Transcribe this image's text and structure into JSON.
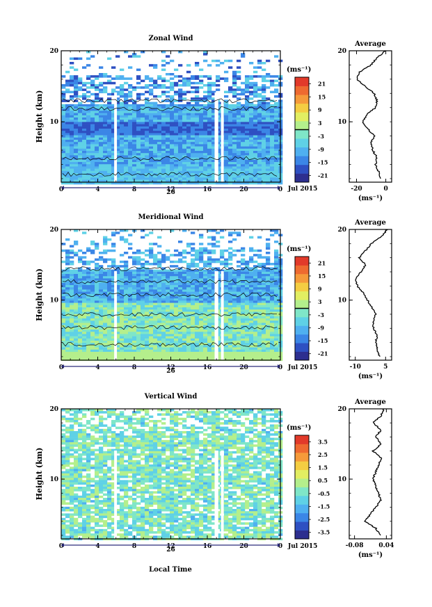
{
  "units_label": "(ms⁻¹)",
  "date_label": "Jul 2015",
  "day_label": "26",
  "shared_xlabel": "Local Time",
  "colors": {
    "scale": [
      "#2d2f8f",
      "#2e50c2",
      "#3b86e6",
      "#4fb0f0",
      "#5fd1e6",
      "#7fe6c8",
      "#b4ef8c",
      "#e2ee62",
      "#f4cd42",
      "#f59a3a",
      "#ee6a30",
      "#e23a2a"
    ],
    "gap": "#ffffff"
  },
  "chart_data": [
    {
      "type": "heatmap",
      "id": "zonal",
      "title": "Zonal Wind",
      "ylabel": "Height (km)",
      "x_ticks": [
        "0",
        "4",
        "8",
        "12",
        "16",
        "20",
        "0"
      ],
      "xlim": [
        0,
        24
      ],
      "y_ticks": [
        "20",
        "10"
      ],
      "ylim": [
        1.5,
        20
      ],
      "colorbar_ticks": [
        "21",
        "15",
        "9",
        "3",
        "-3",
        "-9",
        "-15",
        "-21"
      ],
      "colorbar_range": [
        -24,
        24
      ],
      "colorbar_zero_line": true,
      "contours": true,
      "average": {
        "title": "Average",
        "x_ticks": [
          "-20",
          "0"
        ],
        "xlim": [
          -25,
          4
        ],
        "profile": [
          [
            2,
            -4
          ],
          [
            3,
            -5
          ],
          [
            4,
            -7
          ],
          [
            5,
            -6
          ],
          [
            6,
            -9
          ],
          [
            7,
            -10
          ],
          [
            8,
            -8
          ],
          [
            9,
            -12
          ],
          [
            10,
            -16
          ],
          [
            11,
            -13
          ],
          [
            12,
            -7
          ],
          [
            13,
            -6
          ],
          [
            14,
            -8
          ],
          [
            15,
            -14
          ],
          [
            16,
            -20
          ],
          [
            17,
            -18
          ],
          [
            18,
            -10
          ],
          [
            19,
            -6
          ],
          [
            20,
            0
          ]
        ]
      }
    },
    {
      "type": "heatmap",
      "id": "meridional",
      "title": "Meridional Wind",
      "ylabel": "Height (km)",
      "x_ticks": [
        "0",
        "4",
        "8",
        "12",
        "16",
        "20",
        "0"
      ],
      "xlim": [
        0,
        24
      ],
      "y_ticks": [
        "20",
        "10"
      ],
      "ylim": [
        1.5,
        20
      ],
      "colorbar_ticks": [
        "21",
        "15",
        "9",
        "3",
        "-3",
        "-9",
        "-15",
        "-21"
      ],
      "colorbar_range": [
        -24,
        24
      ],
      "colorbar_zero_line": true,
      "contours": true,
      "average": {
        "title": "Average",
        "x_ticks": [
          "-10",
          "5"
        ],
        "xlim": [
          -13,
          8
        ],
        "profile": [
          [
            2,
            2
          ],
          [
            3,
            1
          ],
          [
            4,
            0
          ],
          [
            5,
            1
          ],
          [
            6,
            -1
          ],
          [
            7,
            -1
          ],
          [
            8,
            0
          ],
          [
            9,
            -2
          ],
          [
            10,
            -4
          ],
          [
            11,
            -6
          ],
          [
            12,
            -9
          ],
          [
            13,
            -10
          ],
          [
            14,
            -7
          ],
          [
            15,
            -5
          ],
          [
            16,
            -8
          ],
          [
            17,
            -5
          ],
          [
            18,
            -2
          ],
          [
            19,
            3
          ],
          [
            20,
            6
          ]
        ]
      }
    },
    {
      "type": "heatmap",
      "id": "vertical",
      "title": "Vertical Wind",
      "ylabel": "Height (km)",
      "x_ticks": [
        "0",
        "4",
        "8",
        "12",
        "16",
        "20",
        "0"
      ],
      "xlim": [
        0,
        24
      ],
      "y_ticks": [
        "20",
        "10"
      ],
      "ylim": [
        1.5,
        20
      ],
      "colorbar_ticks": [
        "3.5",
        "2.5",
        "1.5",
        "0.5",
        "-0.5",
        "-1.5",
        "-2.5",
        "-3.5"
      ],
      "colorbar_range": [
        -4,
        4
      ],
      "colorbar_zero_line": false,
      "contours": false,
      "average": {
        "title": "Average",
        "x_ticks": [
          "-0.08",
          "0.04"
        ],
        "xlim": [
          -0.1,
          0.06
        ],
        "profile": [
          [
            2,
            0.02
          ],
          [
            3,
            0.0
          ],
          [
            4,
            -0.04
          ],
          [
            5,
            -0.02
          ],
          [
            6,
            0.0
          ],
          [
            7,
            0.02
          ],
          [
            8,
            0.01
          ],
          [
            9,
            0.0
          ],
          [
            10,
            -0.01
          ],
          [
            11,
            0.0
          ],
          [
            12,
            0.01
          ],
          [
            13,
            0.02
          ],
          [
            14,
            -0.01
          ],
          [
            15,
            0.02
          ],
          [
            16,
            0.0
          ],
          [
            17,
            0.02
          ],
          [
            18,
            -0.01
          ],
          [
            19,
            0.02
          ],
          [
            20,
            0.03
          ]
        ]
      }
    }
  ]
}
